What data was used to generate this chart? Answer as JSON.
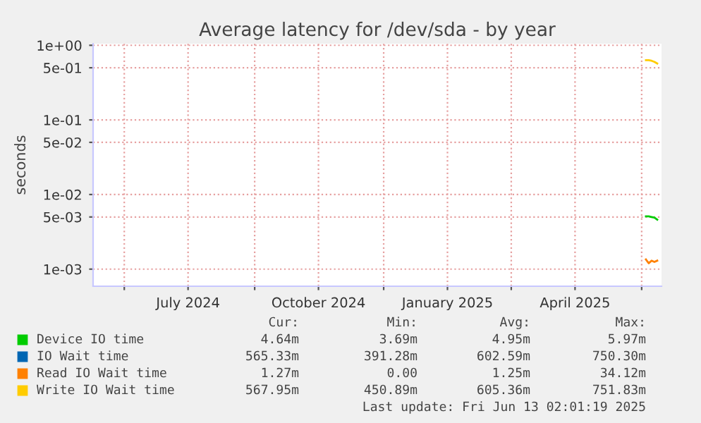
{
  "chart_data": {
    "type": "line",
    "title": "Average latency for /dev/sda - by year",
    "ylabel": "seconds",
    "log": "y",
    "xlim": [
      "2024-05-10",
      "2025-06-15"
    ],
    "ylim": [
      0.00059,
      1.05
    ],
    "xticks": [
      {
        "value": "2024-06-01",
        "label": null
      },
      {
        "value": "2024-07-16",
        "label": "July 2024"
      },
      {
        "value": "2024-09-01",
        "label": null
      },
      {
        "value": "2024-10-16",
        "label": "October 2024"
      },
      {
        "value": "2024-12-01",
        "label": null
      },
      {
        "value": "2025-01-15",
        "label": "January 2025"
      },
      {
        "value": "2025-03-01",
        "label": null
      },
      {
        "value": "2025-04-15",
        "label": "April 2025"
      },
      {
        "value": "2025-06-01",
        "label": null
      }
    ],
    "yticks": [
      {
        "value": 1,
        "label": "1e+00"
      },
      {
        "value": 0.5,
        "label": "5e-01"
      },
      {
        "value": 0.1,
        "label": "1e-01"
      },
      {
        "value": 0.05,
        "label": "5e-02"
      },
      {
        "value": 0.01,
        "label": "1e-02"
      },
      {
        "value": 0.005,
        "label": "5e-03"
      },
      {
        "value": 0.001,
        "label": "1e-03"
      }
    ],
    "grid": true,
    "legend": "bottom",
    "x": [
      "2025-06-04",
      "2025-06-06",
      "2025-06-08",
      "2025-06-10",
      "2025-06-12"
    ],
    "series": [
      {
        "name": "Device IO time",
        "color": "#00cc00",
        "values": [
          0.0051,
          0.0051,
          0.005,
          0.0049,
          0.0046
        ]
      },
      {
        "name": "IO Wait time",
        "color": "#0066b3",
        "values": [
          null,
          null,
          null,
          null,
          null
        ]
      },
      {
        "name": "Read IO Wait time",
        "color": "#ff8000",
        "values": [
          0.00135,
          0.0012,
          0.0013,
          0.00125,
          0.0013
        ]
      },
      {
        "name": "Write IO Wait time",
        "color": "#ffcc00",
        "values": [
          0.63,
          0.63,
          0.62,
          0.6,
          0.57
        ]
      }
    ],
    "annotations": [
      "Cur:",
      "Min:",
      "Avg:",
      "Max:",
      "4.64m",
      "3.69m",
      "4.95m",
      "5.97m",
      "565.33m",
      "391.28m",
      "602.59m",
      "750.30m",
      "1.27m",
      "0.00",
      "1.25m",
      "34.12m",
      "567.95m",
      "450.89m",
      "605.36m",
      "751.83m",
      "Last update: Fri Jun 13 02:01:19 2025"
    ]
  }
}
